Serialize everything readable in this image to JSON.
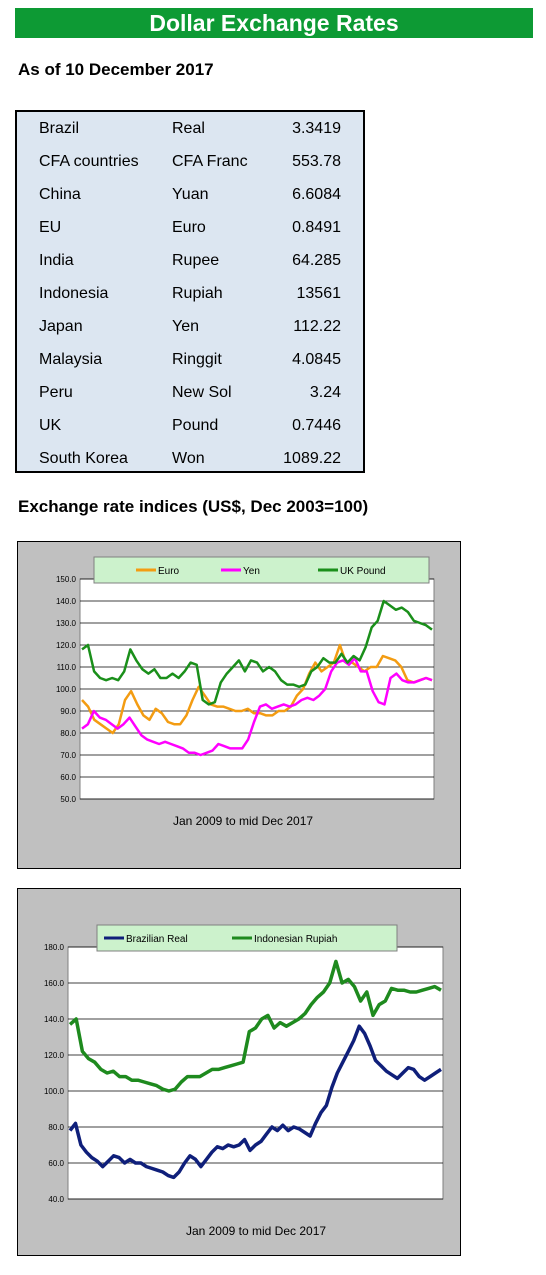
{
  "header": {
    "title": "Dollar Exchange Rates",
    "as_of": "As of 10 December 2017"
  },
  "rates": [
    {
      "country": "Brazil",
      "currency": "Real",
      "value": "3.3419"
    },
    {
      "country": "CFA countries",
      "currency": "CFA Franc",
      "value": "553.78"
    },
    {
      "country": "China",
      "currency": "Yuan",
      "value": "6.6084"
    },
    {
      "country": "EU",
      "currency": "Euro",
      "value": "0.8491"
    },
    {
      "country": "India",
      "currency": "Rupee",
      "value": "64.285"
    },
    {
      "country": "Indonesia",
      "currency": "Rupiah",
      "value": "13561"
    },
    {
      "country": "Japan",
      "currency": "Yen",
      "value": "112.22"
    },
    {
      "country": "Malaysia",
      "currency": "Ringgit",
      "value": "4.0845"
    },
    {
      "country": "Peru",
      "currency": "New Sol",
      "value": "3.24"
    },
    {
      "country": "UK",
      "currency": "Pound",
      "value": "0.7446"
    },
    {
      "country": "South Korea",
      "currency": "Won",
      "value": "1089.22"
    }
  ],
  "indices_title": "Exchange rate indices (US$, Dec 2003=100)",
  "chart_data": [
    {
      "type": "line",
      "title": "",
      "xlabel": "Jan 2009  to mid Dec 2017",
      "ylabel": "",
      "ylim": [
        50,
        150
      ],
      "yticks": [
        "50.0",
        "60.0",
        "70.0",
        "80.0",
        "90.0",
        "100.0",
        "110.0",
        "120.0",
        "130.0",
        "140.0",
        "150.0"
      ],
      "grid": true,
      "legend": "top",
      "x_start": "Jan 2009",
      "x_end": "mid Dec 2017",
      "series": [
        {
          "name": "Euro",
          "color": "#f39c12",
          "values": [
            95,
            92,
            86,
            84,
            82,
            80,
            84,
            95,
            99,
            93,
            88,
            86,
            91,
            89,
            85,
            84,
            84,
            88,
            95,
            101,
            97,
            93,
            92,
            92,
            91,
            90,
            90,
            91,
            89,
            89,
            88,
            88,
            90,
            90,
            92,
            97,
            100,
            107,
            112,
            108,
            110,
            112,
            120,
            112,
            112,
            110,
            108,
            110,
            110,
            115,
            114,
            113,
            110,
            104,
            103,
            104,
            105,
            104
          ]
        },
        {
          "name": "Yen",
          "color": "#ff00ff",
          "values": [
            82,
            84,
            90,
            87,
            86,
            84,
            82,
            84,
            87,
            83,
            79,
            77,
            76,
            75,
            76,
            75,
            74,
            73,
            71,
            71,
            70,
            71,
            72,
            75,
            74,
            73,
            73,
            73,
            77,
            85,
            92,
            93,
            91,
            92,
            93,
            92,
            93,
            95,
            96,
            95,
            97,
            100,
            108,
            112,
            113,
            111,
            114,
            108,
            108,
            99,
            94,
            93,
            105,
            107,
            104,
            103,
            103,
            104,
            105,
            104
          ]
        },
        {
          "name": "UK Pound",
          "color": "#1a8f1a",
          "values": [
            118,
            120,
            108,
            105,
            104,
            105,
            104,
            108,
            118,
            113,
            109,
            107,
            109,
            105,
            105,
            107,
            105,
            108,
            112,
            111,
            95,
            93,
            94,
            103,
            107,
            110,
            113,
            108,
            113,
            112,
            108,
            110,
            108,
            104,
            102,
            102,
            101,
            102,
            108,
            110,
            114,
            112,
            112,
            116,
            112,
            115,
            113,
            119,
            128,
            131,
            140,
            138,
            136,
            137,
            135,
            131,
            130,
            129,
            127
          ]
        }
      ]
    },
    {
      "type": "line",
      "title": "",
      "xlabel": "Jan 2009 to mid Dec 2017",
      "ylabel": "",
      "ylim": [
        40,
        180
      ],
      "yticks": [
        "40.0",
        "60.0",
        "80.0",
        "100.0",
        "120.0",
        "140.0",
        "160.0",
        "180.0"
      ],
      "grid": true,
      "legend": "top",
      "x_start": "Jan 2009",
      "x_end": "mid Dec 2017",
      "series": [
        {
          "name": "Brazilian Real",
          "color": "#0f1f7a",
          "values": [
            78,
            82,
            70,
            66,
            63,
            61,
            58,
            61,
            64,
            63,
            60,
            62,
            60,
            60,
            58,
            57,
            56,
            55,
            53,
            52,
            55,
            60,
            64,
            62,
            58,
            62,
            66,
            69,
            68,
            70,
            69,
            70,
            73,
            67,
            70,
            72,
            76,
            80,
            78,
            81,
            78,
            80,
            79,
            77,
            75,
            82,
            88,
            92,
            102,
            110,
            116,
            122,
            128,
            136,
            132,
            125,
            117,
            114,
            111,
            109,
            107,
            110,
            113,
            112,
            108,
            106,
            108,
            110,
            112
          ]
        },
        {
          "name": "Indonesian Rupiah",
          "color": "#1e8a1e",
          "values": [
            137,
            140,
            122,
            118,
            116,
            112,
            110,
            111,
            108,
            108,
            106,
            106,
            105,
            104,
            103,
            101,
            100,
            101,
            105,
            108,
            108,
            108,
            110,
            112,
            112,
            113,
            114,
            115,
            116,
            133,
            135,
            140,
            142,
            135,
            138,
            136,
            138,
            140,
            143,
            148,
            152,
            155,
            160,
            172,
            160,
            162,
            158,
            150,
            155,
            142,
            148,
            150,
            157,
            156,
            156,
            155,
            155,
            156,
            157,
            158,
            156
          ]
        }
      ]
    }
  ]
}
